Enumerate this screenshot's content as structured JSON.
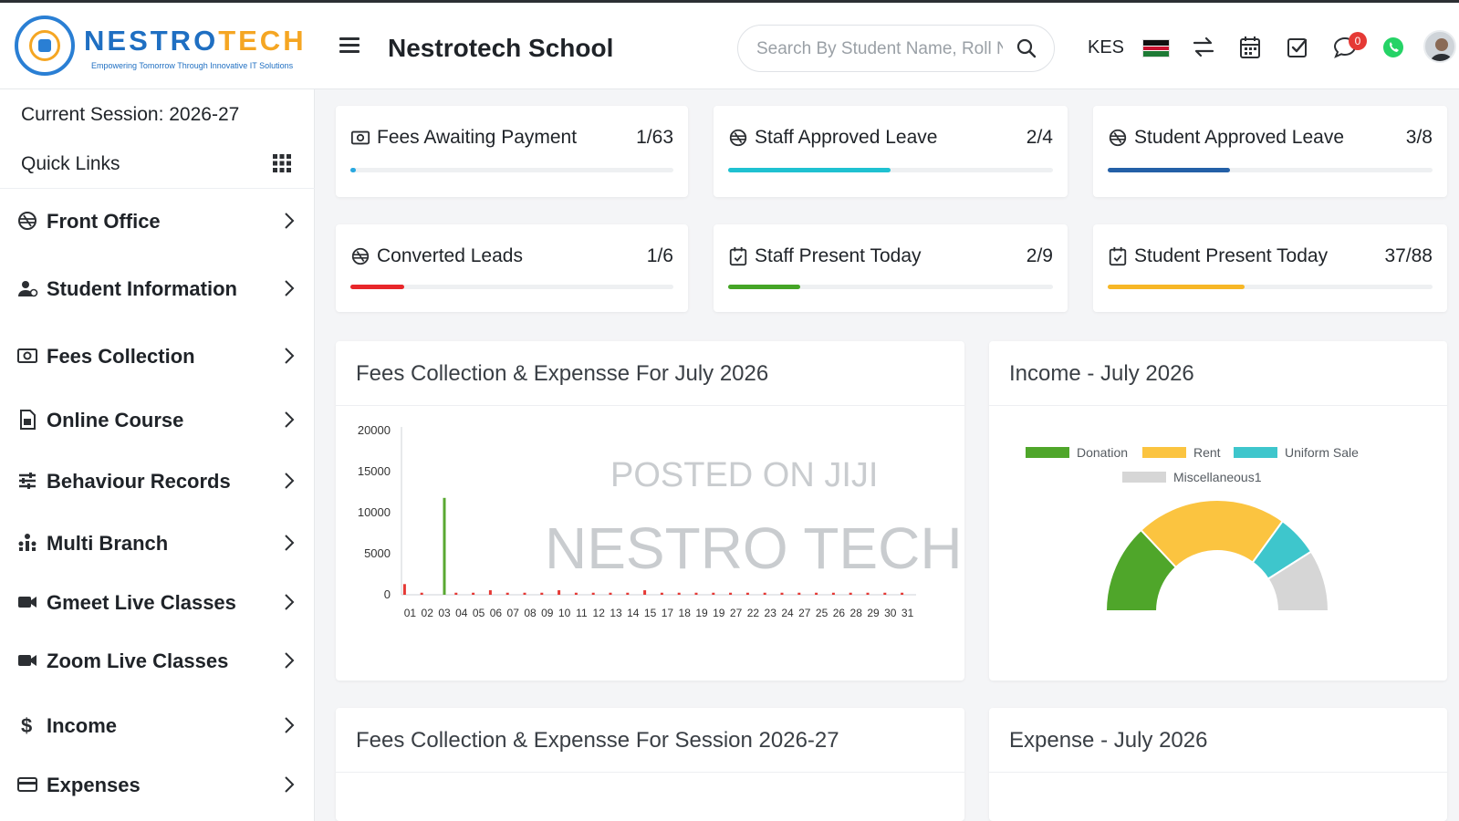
{
  "header": {
    "logo_name_main": "NESTRO",
    "logo_name_accent": "TECH",
    "logo_tagline": "Empowering Tomorrow Through Innovative IT Solutions",
    "school_name": "Nestrotech School",
    "search_placeholder": "Search By Student Name, Roll Number",
    "currency": "KES",
    "notification_count": "0",
    "icons": [
      "menu-icon",
      "search-icon",
      "kenya-flag-icon",
      "switch-icon",
      "calendar-icon",
      "task-check-icon",
      "chat-icon",
      "whatsapp-icon",
      "user-avatar"
    ]
  },
  "sidebar": {
    "session_label": "Current Session: 2026-27",
    "quick_links_label": "Quick Links",
    "items": [
      {
        "label": "Front Office",
        "icon": "front-office-icon"
      },
      {
        "label": "Student Information",
        "icon": "student-icon"
      },
      {
        "label": "Fees Collection",
        "icon": "money-icon"
      },
      {
        "label": "Online Course",
        "icon": "course-icon"
      },
      {
        "label": "Behaviour Records",
        "icon": "sliders-icon"
      },
      {
        "label": "Multi Branch",
        "icon": "branch-icon"
      },
      {
        "label": "Gmeet Live Classes",
        "icon": "video-icon"
      },
      {
        "label": "Zoom Live Classes",
        "icon": "video-icon"
      },
      {
        "label": "Income",
        "icon": "dollar-icon"
      },
      {
        "label": "Expenses",
        "icon": "card-icon"
      }
    ]
  },
  "stats": [
    {
      "label": "Fees Awaiting Payment",
      "value": "1/63",
      "progress": 0.016,
      "color": "#29a8e0"
    },
    {
      "label": "Staff Approved Leave",
      "value": "2/4",
      "progress": 0.5,
      "color": "#1fc1d1"
    },
    {
      "label": "Student Approved Leave",
      "value": "3/8",
      "progress": 0.375,
      "color": "#2460a7"
    },
    {
      "label": "Converted Leads",
      "value": "1/6",
      "progress": 0.167,
      "color": "#e8262a"
    },
    {
      "label": "Staff Present Today",
      "value": "2/9",
      "progress": 0.222,
      "color": "#45a526"
    },
    {
      "label": "Student Present Today",
      "value": "37/88",
      "progress": 0.42,
      "color": "#f7b726"
    }
  ],
  "panels": {
    "fees_month_title": "Fees Collection & Expensse For July 2026",
    "income_title": "Income - July 2026",
    "fees_session_title": "Fees Collection & Expensse For Session 2026-27",
    "expense_title": "Expense - July 2026"
  },
  "watermark": {
    "line1": "POSTED ON JIJI",
    "line2": "NESTRO TECH"
  },
  "chart_data": [
    {
      "type": "bar",
      "title": "Fees Collection & Expensse For July 2026",
      "categories": [
        "01",
        "02",
        "03",
        "04",
        "05",
        "06",
        "07",
        "08",
        "09",
        "10",
        "11",
        "12",
        "13",
        "14",
        "15",
        "17",
        "18",
        "19",
        "19",
        "27",
        "22",
        "23",
        "24",
        "27",
        "25",
        "26",
        "28",
        "29",
        "30",
        "31"
      ],
      "ylim": [
        0,
        20000
      ],
      "yticks": [
        0,
        5000,
        10000,
        15000,
        20000
      ],
      "series": [
        {
          "color": "#5aa832",
          "values": [
            0,
            0,
            11800,
            0,
            0,
            0,
            0,
            0,
            0,
            0,
            0,
            0,
            0,
            0,
            0,
            0,
            0,
            0,
            0,
            0,
            0,
            0,
            0,
            0,
            0,
            0,
            0,
            0,
            0,
            0
          ]
        },
        {
          "color": "#e53935",
          "values": [
            1300,
            250,
            0,
            250,
            250,
            550,
            250,
            250,
            250,
            550,
            250,
            250,
            250,
            250,
            550,
            250,
            250,
            250,
            250,
            250,
            250,
            250,
            250,
            250,
            250,
            250,
            250,
            250,
            250,
            250
          ]
        }
      ]
    },
    {
      "type": "pie",
      "title": "Income - July 2026",
      "legend": [
        "Donation",
        "Rent",
        "Uniform Sale",
        "Miscellaneous1"
      ],
      "colors": [
        "#4fa62a",
        "#fbc440",
        "#3ec6cc",
        "#d6d6d6"
      ],
      "values": [
        26,
        44,
        12,
        18
      ],
      "legend_position": "top"
    }
  ]
}
